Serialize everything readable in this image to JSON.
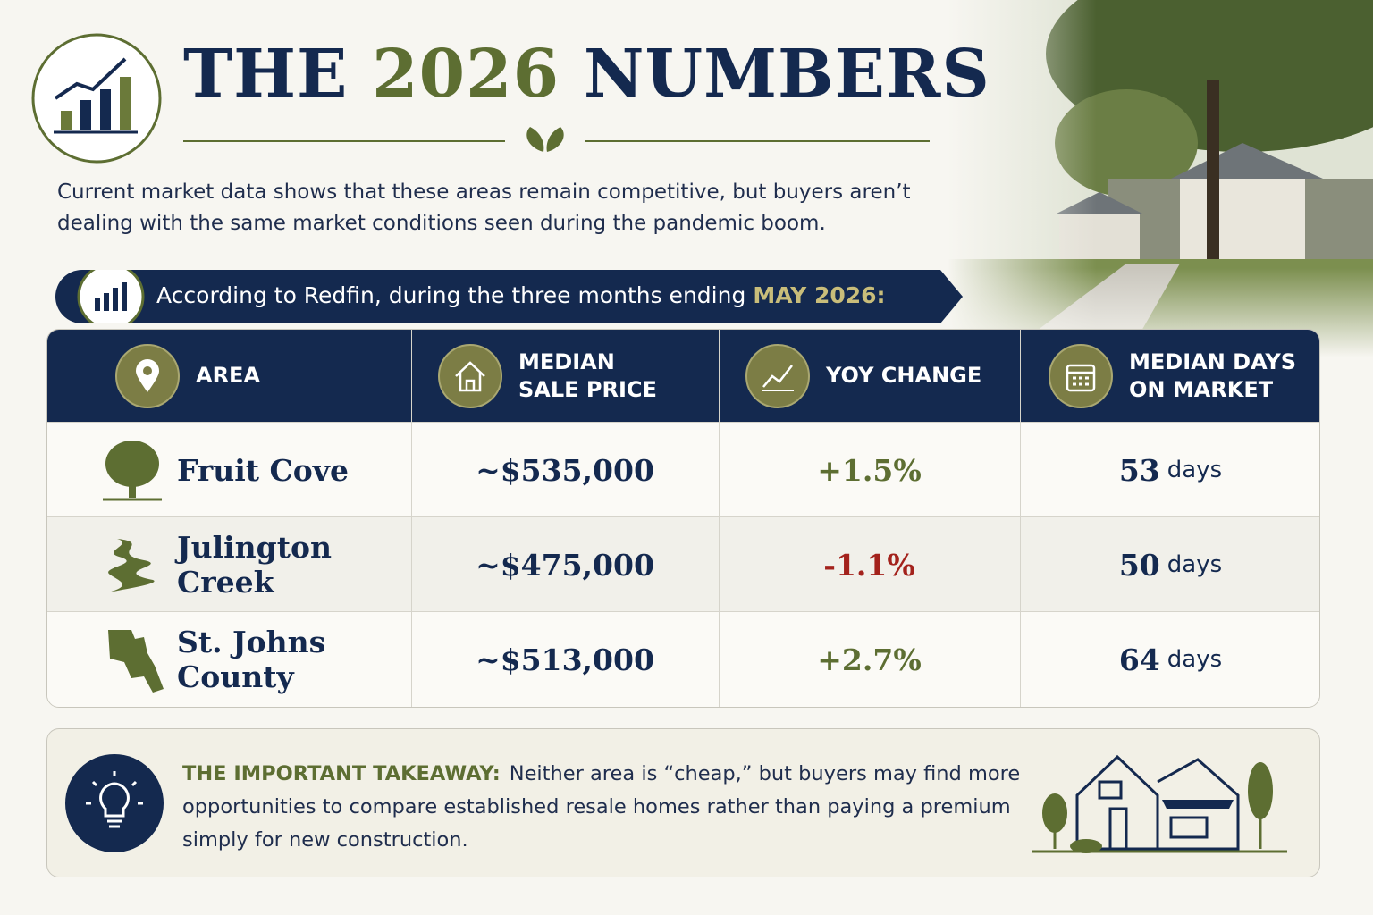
{
  "header": {
    "title": {
      "before": "THE",
      "highlight": "2026",
      "after": "NUMBERS"
    },
    "intro": "Current market data shows that these areas remain competitive, but buyers aren’t dealing with the same market conditions seen during the pandemic boom."
  },
  "banner": {
    "text": "According to Redfin, during the three months ending",
    "highlight": "MAY 2026:"
  },
  "table": {
    "headers": [
      "AREA",
      "MEDIAN SALE PRICE",
      "YOY CHANGE",
      "MEDIAN DAYS ON MARKET"
    ],
    "rows": [
      {
        "area": "Fruit Cove",
        "price": "~$535,000",
        "change": "+1.5%",
        "days": {
          "number": "53",
          "unit": "days"
        }
      },
      {
        "area": "Julington Creek",
        "price": "~$475,000",
        "change": "-1.1%",
        "days": {
          "number": "50",
          "unit": "days"
        }
      },
      {
        "area": "St. Johns County",
        "price": "~$513,000",
        "change": "+2.7%",
        "days": {
          "number": "64",
          "unit": "days"
        }
      }
    ]
  },
  "takeaway": {
    "label": "THE IMPORTANT TAKEAWAY:",
    "text": "Neither area is “cheap,” but buyers may find more opportunities to compare established resale homes rather than paying a premium simply for new construction."
  }
}
